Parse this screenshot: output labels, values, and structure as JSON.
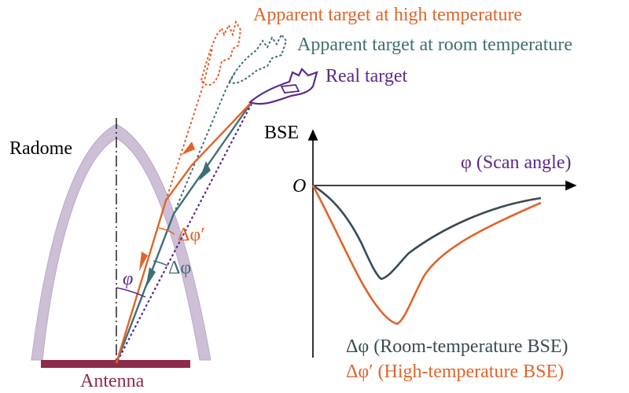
{
  "labels": {
    "radome": "Radome",
    "antenna": "Antenna",
    "phi": "φ",
    "delta_phi": "Δφ",
    "delta_phi_prime": "Δφ′",
    "high_temp_target": "Apparent target at high temperature",
    "room_temp_target": "Apparent target at room temperature",
    "real_target": "Real target",
    "bse_axis": "BSE",
    "scan_axis": "φ (Scan angle)",
    "origin": "O",
    "room_legend": "Δφ (Room-temperature BSE)",
    "high_legend": "Δφ′ (High-temperature BSE)"
  },
  "colors": {
    "high_temp": "#e0642a",
    "room_temp": "#3f6f76",
    "real": "#5b2a8a",
    "radome": "#cdbfd6",
    "antenna": "#8e2a4a",
    "curve_room": "#3a4a55",
    "axis": "#000000"
  }
}
